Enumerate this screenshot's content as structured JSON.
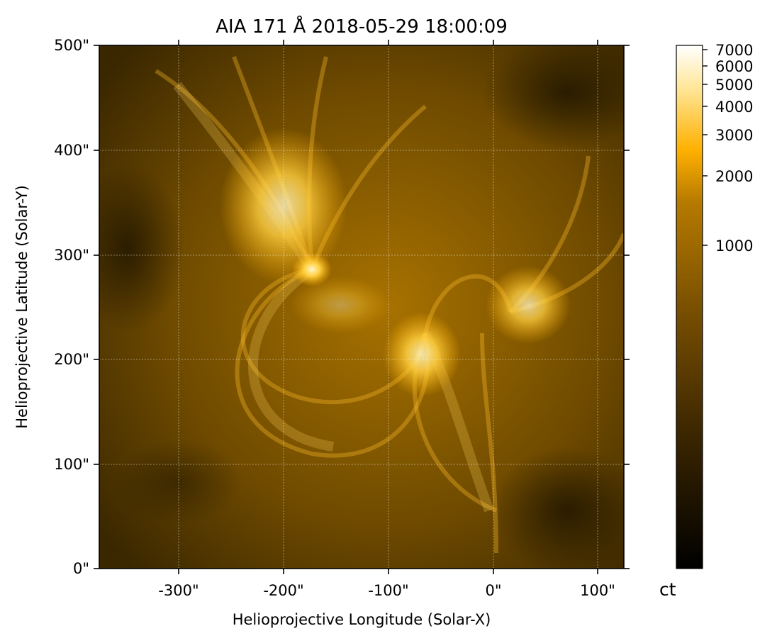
{
  "title": "AIA 171 Å 2018-05-29 18:00:09",
  "xlabel": "Helioprojective Longitude (Solar-X)",
  "ylabel": "Helioprojective Latitude (Solar-Y)",
  "x_ticks": [
    "-300\"",
    "-200\"",
    "-100\"",
    "0\"",
    "100\""
  ],
  "y_ticks": [
    "0\"",
    "100\"",
    "200\"",
    "300\"",
    "400\"",
    "500\""
  ],
  "colorbar": {
    "label": "ct",
    "ticks": [
      "7000",
      "6000",
      "5000",
      "4000",
      "3000",
      "2000",
      "1000"
    ],
    "scale": "log",
    "colors": [
      "#000000",
      "#3a2500",
      "#7a5000",
      "#b67a00",
      "#ffb000",
      "#ffe79a",
      "#ffffff"
    ]
  },
  "colors": {
    "background": "#6b4a00",
    "loop": "#ffbe28",
    "bright": "#fff0b0",
    "grid": "#ffffff"
  }
}
